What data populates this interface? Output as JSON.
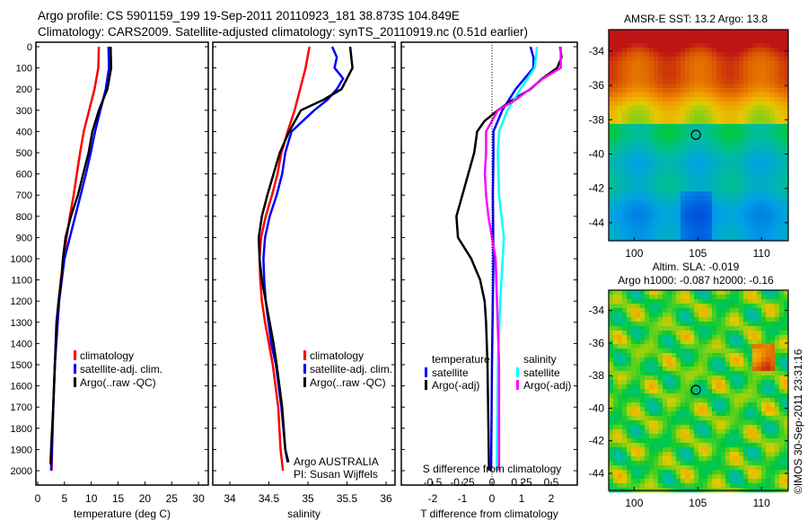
{
  "title_line1": "Argo profile: CS 5901159_199 19-Sep-2011 20110923_181 38.873S 104.849E",
  "title_line2": "Climatology: CARS2009. Satellite-adjusted climatology: synTS_20110919.nc (0.51d earlier)",
  "colors": {
    "climatology": "#ff0000",
    "satellite": "#0000ff",
    "argo": "#000000",
    "sal_satellite": "#00ffff",
    "sal_argo": "#ff00ff"
  },
  "chart_data": [
    {
      "type": "line",
      "name": "temperature",
      "xlabel": "temperature (deg C)",
      "ylabel": "",
      "xlim": [
        -1,
        31
      ],
      "ylim": [
        2080,
        0
      ],
      "xticks": [
        "0",
        "5",
        "10",
        "15",
        "20",
        "25",
        "30"
      ],
      "yticks": [
        "0",
        "100",
        "200",
        "300",
        "400",
        "500",
        "600",
        "700",
        "800",
        "900",
        "1000",
        "1100",
        "1200",
        "1300",
        "1400",
        "1500",
        "1600",
        "1700",
        "1800",
        "1900",
        "2000"
      ],
      "series": [
        {
          "name": "climatology",
          "color": "#ff0000",
          "depth": [
            0,
            100,
            200,
            300,
            400,
            500,
            600,
            700,
            800,
            900,
            1000,
            1100,
            1200,
            1300,
            1400,
            1500,
            1700,
            1900,
            2000
          ],
          "values": [
            11.4,
            11.3,
            10.6,
            9.6,
            8.6,
            7.9,
            7.3,
            6.7,
            6.0,
            5.4,
            4.8,
            4.3,
            3.9,
            3.6,
            3.4,
            3.2,
            2.9,
            2.7,
            2.6
          ]
        },
        {
          "name": "satellite-adj. clim.",
          "color": "#0000ff",
          "depth": [
            0,
            100,
            200,
            300,
            400,
            500,
            600,
            700,
            800,
            900,
            1000,
            1200,
            1500,
            1700,
            2000
          ],
          "values": [
            13.2,
            13.3,
            12.7,
            11.7,
            10.7,
            9.9,
            9.0,
            8.0,
            7.0,
            6.0,
            5.0,
            4.0,
            3.2,
            2.9,
            2.5
          ]
        },
        {
          "name": "Argo(..raw -QC)",
          "color": "#000000",
          "depth": [
            0,
            100,
            200,
            300,
            400,
            500,
            600,
            700,
            800,
            900,
            1000,
            1100,
            1200,
            1300,
            1500,
            1700,
            1900,
            1970
          ],
          "values": [
            13.6,
            13.7,
            13.0,
            11.4,
            10.2,
            9.5,
            8.5,
            7.5,
            6.2,
            5.2,
            4.7,
            4.4,
            3.9,
            3.5,
            3.2,
            2.9,
            2.5,
            2.4
          ]
        }
      ],
      "legend": [
        "climatology",
        "satellite-adj. clim.",
        "Argo(..raw -QC)"
      ]
    },
    {
      "type": "line",
      "name": "salinity",
      "xlabel": "salinity",
      "xlim": [
        33.8,
        36.1
      ],
      "ylim": [
        2080,
        0
      ],
      "xticks": [
        "34",
        "34.5",
        "35",
        "35.5",
        "36"
      ],
      "series": [
        {
          "name": "climatology",
          "color": "#ff0000",
          "depth": [
            0,
            100,
            200,
            300,
            400,
            500,
            600,
            700,
            800,
            900,
            1000,
            1100,
            1200,
            1300,
            1400,
            1500,
            1700,
            1900,
            2000
          ],
          "values": [
            35.02,
            34.97,
            34.9,
            34.83,
            34.74,
            34.66,
            34.61,
            34.54,
            34.46,
            34.4,
            34.38,
            34.39,
            34.41,
            34.45,
            34.5,
            34.55,
            34.62,
            34.65,
            34.68
          ]
        },
        {
          "name": "satellite-adj. clim.",
          "color": "#0000ff",
          "depth": [
            0,
            50,
            100,
            150,
            200,
            250,
            300,
            400,
            500,
            600,
            700,
            800,
            900,
            1000,
            1100,
            1200,
            1400,
            1500,
            1700,
            1900,
            1960
          ],
          "values": [
            35.31,
            35.37,
            35.34,
            35.45,
            35.37,
            35.25,
            35.08,
            34.79,
            34.71,
            34.67,
            34.6,
            34.51,
            34.45,
            34.43,
            34.44,
            34.46,
            34.53,
            34.59,
            34.66,
            34.71,
            34.74
          ]
        },
        {
          "name": "Argo(..raw -QC)",
          "color": "#000000",
          "depth": [
            0,
            100,
            200,
            250,
            300,
            400,
            500,
            600,
            700,
            800,
            900,
            1000,
            1100,
            1200,
            1300,
            1400,
            1500,
            1700,
            1900,
            1960
          ],
          "values": [
            35.54,
            35.57,
            35.43,
            35.2,
            34.91,
            34.76,
            34.64,
            34.56,
            34.48,
            34.41,
            34.37,
            34.38,
            34.41,
            34.46,
            34.51,
            34.56,
            34.6,
            34.67,
            34.71,
            34.75
          ]
        }
      ],
      "legend": [
        "climatology",
        "satellite-adj. clim.",
        " Argo(..raw -QC)"
      ],
      "annotation": [
        "Argo AUSTRALIA",
        "PI: Susan Wijffels"
      ]
    },
    {
      "type": "line",
      "name": "difference",
      "xlabel": "T difference from climatology",
      "xlim": [
        -3,
        3
      ],
      "ylim": [
        2080,
        0
      ],
      "xticks": [
        "-2",
        "-1",
        "0",
        "1",
        "2"
      ],
      "top_xlabel": "S difference from climatology",
      "top_xticks": [
        "-0.5",
        "-0.25",
        "0",
        "0.25",
        "0.5"
      ],
      "series": [
        {
          "name": "temperature satellite",
          "color": "#0000ff",
          "axis": "T",
          "depth": [
            0,
            50,
            100,
            200,
            300,
            400,
            500,
            700,
            1000,
            1500,
            2000
          ],
          "values": [
            1.3,
            1.4,
            1.4,
            0.8,
            0.35,
            0.05,
            0.05,
            0.03,
            0.05,
            0.0,
            -0.03
          ]
        },
        {
          "name": "temperature Argo(-adj)",
          "color": "#000000",
          "axis": "T",
          "depth": [
            0,
            50,
            100,
            150,
            200,
            250,
            300,
            350,
            400,
            500,
            600,
            700,
            800,
            900,
            1000,
            1100,
            1200,
            1300,
            1500,
            2000
          ],
          "values": [
            2.3,
            2.35,
            2.2,
            1.7,
            1.3,
            0.7,
            0.2,
            -0.25,
            -0.5,
            -0.6,
            -0.8,
            -1.0,
            -1.2,
            -1.15,
            -0.7,
            -0.4,
            -0.25,
            -0.2,
            -0.15,
            -0.1
          ]
        },
        {
          "name": "salinity satellite",
          "color": "#00ffff",
          "axis": "S",
          "depth": [
            0,
            100,
            200,
            300,
            400,
            500,
            700,
            900,
            1000,
            1200,
            1500,
            2000
          ],
          "values": [
            0.38,
            0.36,
            0.24,
            0.13,
            0.06,
            0.05,
            0.06,
            0.1,
            0.09,
            0.07,
            0.05,
            0.04
          ]
        },
        {
          "name": "salinity Argo(-adj)",
          "color": "#ff00ff",
          "axis": "S",
          "depth": [
            0,
            100,
            150,
            200,
            250,
            300,
            400,
            500,
            600,
            700,
            800,
            900,
            1000,
            1500,
            2000
          ],
          "values": [
            0.58,
            0.58,
            0.43,
            0.32,
            0.2,
            0.05,
            -0.05,
            -0.05,
            -0.06,
            -0.05,
            -0.03,
            0.0,
            0.03,
            0.06,
            0.06
          ]
        }
      ],
      "legend_headers": [
        "temperature",
        "salinity"
      ],
      "legend": [
        "satellite",
        "Argo(-adj)",
        "satellite",
        "Argo(-adj)"
      ]
    },
    {
      "type": "heatmap",
      "name": "sst_map",
      "title": "AMSR-E SST: 13.2 Argo: 13.8",
      "xlim": [
        98,
        112
      ],
      "ylim": [
        -45,
        -32.8
      ],
      "xticks": [
        "100",
        "105",
        "110"
      ],
      "yticks": [
        "-34",
        "-36",
        "-38",
        "-40",
        "-42",
        "-44"
      ],
      "marker": {
        "lon": 104.849,
        "lat": -38.873
      }
    },
    {
      "type": "heatmap",
      "name": "sla_map",
      "title": "Altim. SLA: -0.019",
      "subtitle": "Argo h1000: -0.087 h2000: -0.16",
      "xlim": [
        98,
        112
      ],
      "ylim": [
        -45,
        -32.8
      ],
      "xticks": [
        "100",
        "105",
        "110"
      ],
      "yticks": [
        "-34",
        "-36",
        "-38",
        "-40",
        "-42",
        "-44"
      ],
      "marker": {
        "lon": 104.849,
        "lat": -38.873
      }
    }
  ],
  "credit": "©IMOS 30-Sep-2011 23:31:16"
}
